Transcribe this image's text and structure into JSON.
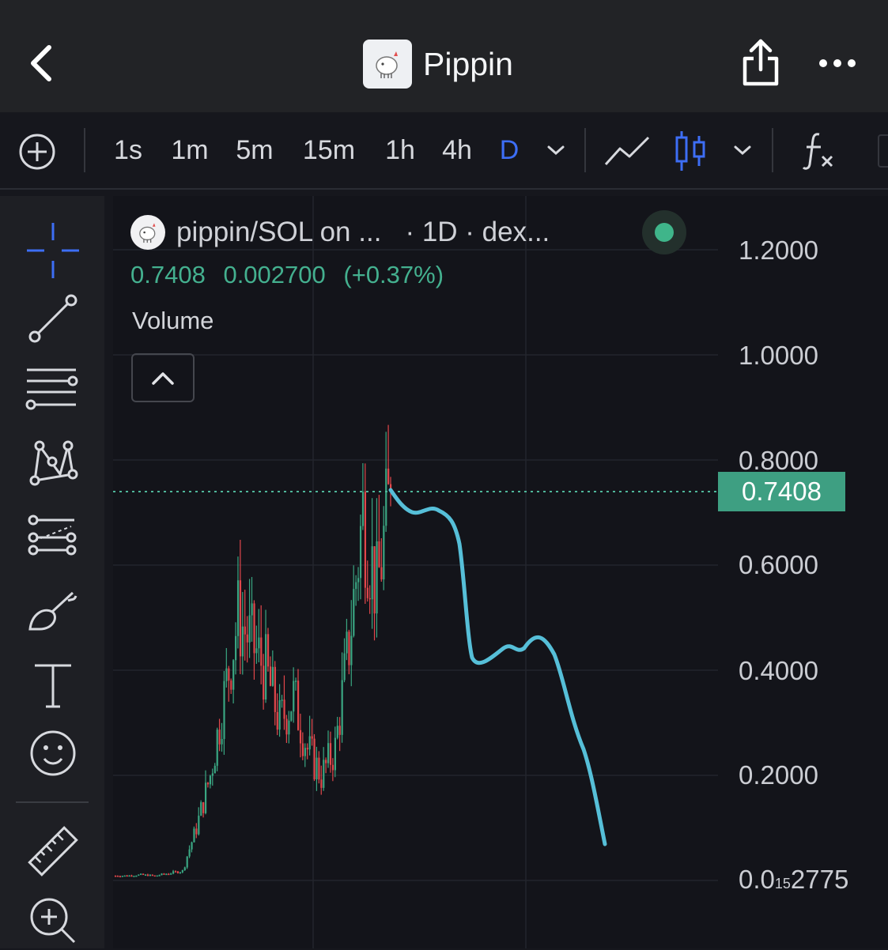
{
  "header": {
    "title": "Pippin",
    "back_icon": "chevron-left-icon",
    "share_icon": "share-icon",
    "more_icon": "more-horizontal-icon"
  },
  "toolbar": {
    "add_icon": "plus-circle-icon",
    "timeframes": [
      "1s",
      "1m",
      "5m",
      "15m",
      "1h",
      "4h",
      "D"
    ],
    "active_timeframe": "D",
    "line_chart_icon": "line-chart-icon",
    "candles_icon": "candlestick-icon",
    "indicators_icon": "function-icon"
  },
  "sidebar": {
    "tools": [
      "crosshair-icon",
      "trend-line-icon",
      "fib-retracement-icon",
      "pattern-icon",
      "prediction-icon",
      "brush-icon",
      "text-icon",
      "emoji-icon",
      "ruler-icon",
      "zoom-in-icon"
    ]
  },
  "chart": {
    "pair": "pippin/SOL on ...",
    "meta": "· 1D · dex...",
    "ohlc": {
      "close": "0.7408",
      "change": "0.002700",
      "change_pct": "(+0.37%)"
    },
    "volume_label": "Volume",
    "price_labels": [
      "1.2000",
      "1.0000",
      "0.8000",
      "0.6000",
      "0.4000",
      "0.2000"
    ],
    "bottom_label": {
      "main": "0.0",
      "sub": "15",
      "tail": "2775"
    },
    "last_price": "0.7408",
    "colors": {
      "up": "#3aa682",
      "down": "#e2474b",
      "annotation": "#56bfd8",
      "last_price_bg": "#3e9f82"
    }
  },
  "chart_data": {
    "type": "candlestick",
    "ylim": [
      0.0,
      1.3
    ],
    "series_name": "pippin/SOL",
    "timeframe": "1D",
    "last_close": 0.7408,
    "approx_close_path": [
      0.01,
      0.01,
      0.012,
      0.01,
      0.015,
      0.02,
      0.1,
      0.2,
      0.35,
      0.5,
      0.45,
      0.4,
      0.3,
      0.35,
      0.25,
      0.2,
      0.25,
      0.45,
      0.7,
      0.55,
      0.7408
    ],
    "annotation_curve": [
      0.7408,
      0.7,
      0.7,
      0.62,
      0.4,
      0.43,
      0.41,
      0.44,
      0.3,
      0.15,
      0.05
    ]
  }
}
